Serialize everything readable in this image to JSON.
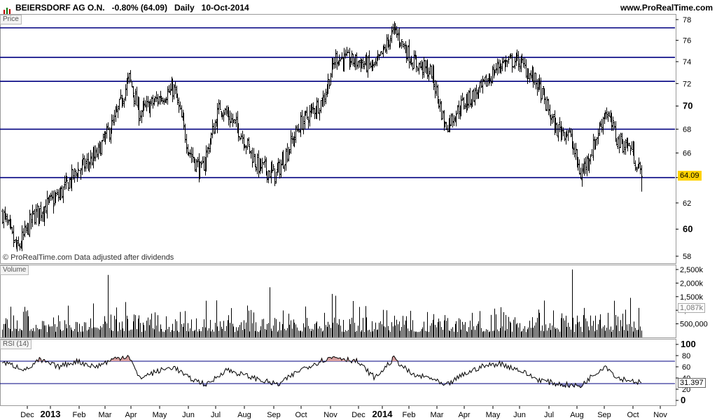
{
  "header": {
    "title": "BEIERSDORF AG O.N.",
    "change": "-0.80% (64.09)",
    "interval": "Daily",
    "date": "10-Oct-2014",
    "website": "www.ProRealTime.com"
  },
  "watermark": "© ProRealTime.com  Data adjusted after dividends",
  "panes": {
    "price_label": "Price",
    "volume_label": "Volume",
    "rsi_label": "RSI (14)"
  },
  "colors": {
    "bars": "#000000",
    "hlines": "#000080",
    "price_tag": "#ffd200",
    "rsi_fill": "#d9a0a0",
    "rsi_line": "#000000"
  },
  "chart_data": [
    {
      "type": "ohlc",
      "title": "BEIERSDORF AG O.N.",
      "last_price": "64.09",
      "ylim": [
        57.5,
        78
      ],
      "y_ticks": [
        "58",
        "60",
        "62",
        "64",
        "66",
        "68",
        "70",
        "72",
        "74",
        "76",
        "78"
      ],
      "horizontal_levels": [
        64.0,
        68.0,
        72.2,
        74.4,
        77.2
      ],
      "months": [
        "Dec",
        "2013",
        "Feb",
        "Mar",
        "Apr",
        "May",
        "Jun",
        "Jul",
        "Aug",
        "Sep",
        "Oct",
        "Nov",
        "Dec",
        "2014",
        "Feb",
        "Mar",
        "Apr",
        "May",
        "Jun",
        "Jul",
        "Aug",
        "Sep",
        "Oct",
        "Nov"
      ],
      "anchors": [
        {
          "i": 0,
          "v": 61.2
        },
        {
          "i": 12,
          "v": 58.4
        },
        {
          "i": 25,
          "v": 61.0
        },
        {
          "i": 45,
          "v": 62.5
        },
        {
          "i": 60,
          "v": 64.5
        },
        {
          "i": 75,
          "v": 65.7
        },
        {
          "i": 90,
          "v": 68.7
        },
        {
          "i": 102,
          "v": 72.5
        },
        {
          "i": 110,
          "v": 69.4
        },
        {
          "i": 125,
          "v": 70.6
        },
        {
          "i": 138,
          "v": 71.5
        },
        {
          "i": 150,
          "v": 66.2
        },
        {
          "i": 160,
          "v": 64.4
        },
        {
          "i": 175,
          "v": 70.0
        },
        {
          "i": 190,
          "v": 68.0
        },
        {
          "i": 205,
          "v": 65.0
        },
        {
          "i": 220,
          "v": 64.2
        },
        {
          "i": 240,
          "v": 68.5
        },
        {
          "i": 258,
          "v": 70.6
        },
        {
          "i": 268,
          "v": 74.4
        },
        {
          "i": 285,
          "v": 74.0
        },
        {
          "i": 300,
          "v": 73.5
        },
        {
          "i": 315,
          "v": 77.0
        },
        {
          "i": 330,
          "v": 74.0
        },
        {
          "i": 345,
          "v": 73.0
        },
        {
          "i": 356,
          "v": 68.2
        },
        {
          "i": 370,
          "v": 70.2
        },
        {
          "i": 385,
          "v": 71.5
        },
        {
          "i": 400,
          "v": 73.8
        },
        {
          "i": 415,
          "v": 74.1
        },
        {
          "i": 430,
          "v": 72.0
        },
        {
          "i": 445,
          "v": 68.0
        },
        {
          "i": 455,
          "v": 67.8
        },
        {
          "i": 465,
          "v": 64.2
        },
        {
          "i": 475,
          "v": 66.5
        },
        {
          "i": 485,
          "v": 69.6
        },
        {
          "i": 495,
          "v": 67.0
        },
        {
          "i": 505,
          "v": 66.5
        },
        {
          "i": 514,
          "v": 64.09
        }
      ],
      "bar_count": 515
    },
    {
      "type": "bar",
      "title": "Volume",
      "y_ticks": [
        "500,000",
        "1,000k",
        "1,500k",
        "2,000k",
        "2,500k"
      ],
      "ylim": [
        0,
        2500000
      ],
      "last_value": "1,087k",
      "typical_range": [
        200000,
        1000000
      ],
      "spikes": [
        {
          "i": 85,
          "v": 2300000
        },
        {
          "i": 73,
          "v": 1250000
        },
        {
          "i": 164,
          "v": 1350000
        },
        {
          "i": 265,
          "v": 1600000
        },
        {
          "i": 458,
          "v": 2500000
        },
        {
          "i": 492,
          "v": 1350000
        },
        {
          "i": 512,
          "v": 1087000
        }
      ]
    },
    {
      "type": "line",
      "title": "RSI (14)",
      "ylim": [
        0,
        100
      ],
      "y_ticks": [
        "0",
        "20",
        "40",
        "60",
        "80",
        "100"
      ],
      "levels": [
        30,
        70
      ],
      "last_value": "31.397",
      "anchors": [
        {
          "i": 0,
          "v": 68
        },
        {
          "i": 20,
          "v": 55
        },
        {
          "i": 30,
          "v": 72
        },
        {
          "i": 45,
          "v": 60
        },
        {
          "i": 60,
          "v": 70
        },
        {
          "i": 75,
          "v": 60
        },
        {
          "i": 90,
          "v": 74
        },
        {
          "i": 102,
          "v": 80
        },
        {
          "i": 110,
          "v": 40
        },
        {
          "i": 125,
          "v": 52
        },
        {
          "i": 138,
          "v": 60
        },
        {
          "i": 150,
          "v": 40
        },
        {
          "i": 165,
          "v": 28
        },
        {
          "i": 180,
          "v": 55
        },
        {
          "i": 195,
          "v": 45
        },
        {
          "i": 210,
          "v": 35
        },
        {
          "i": 222,
          "v": 28
        },
        {
          "i": 240,
          "v": 55
        },
        {
          "i": 258,
          "v": 72
        },
        {
          "i": 268,
          "v": 78
        },
        {
          "i": 285,
          "v": 70
        },
        {
          "i": 300,
          "v": 40
        },
        {
          "i": 315,
          "v": 75
        },
        {
          "i": 330,
          "v": 45
        },
        {
          "i": 345,
          "v": 40
        },
        {
          "i": 356,
          "v": 25
        },
        {
          "i": 370,
          "v": 45
        },
        {
          "i": 385,
          "v": 60
        },
        {
          "i": 400,
          "v": 66
        },
        {
          "i": 415,
          "v": 55
        },
        {
          "i": 430,
          "v": 38
        },
        {
          "i": 445,
          "v": 30
        },
        {
          "i": 465,
          "v": 25
        },
        {
          "i": 475,
          "v": 45
        },
        {
          "i": 485,
          "v": 62
        },
        {
          "i": 495,
          "v": 40
        },
        {
          "i": 505,
          "v": 36
        },
        {
          "i": 514,
          "v": 31.4
        }
      ]
    }
  ]
}
